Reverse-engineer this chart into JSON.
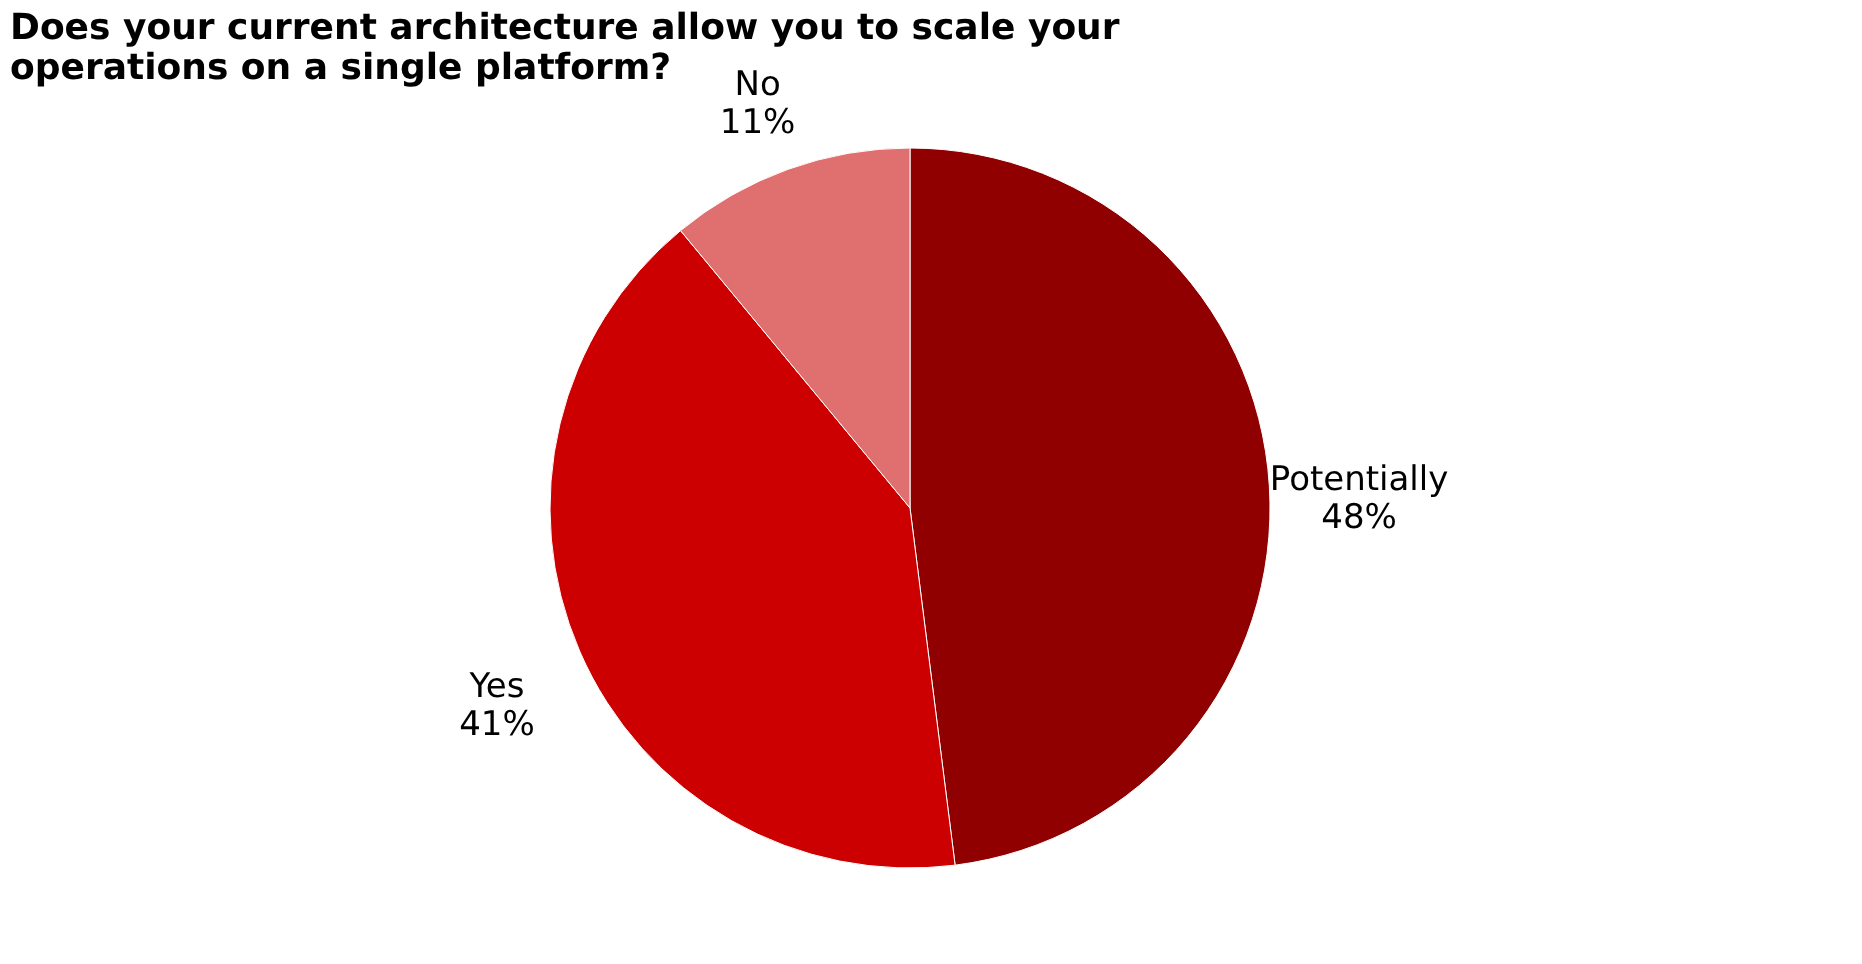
{
  "chart_data": {
    "type": "pie",
    "title": "Does your current architecture allow you to scale your operations on a single platform?",
    "categories": [
      "Potentially",
      "Yes",
      "No"
    ],
    "values": [
      48,
      41,
      11
    ],
    "value_labels": [
      "48%",
      "41%",
      "11%"
    ],
    "colors": [
      "#910000",
      "#cc0000",
      "#e07070"
    ],
    "legend": false
  }
}
